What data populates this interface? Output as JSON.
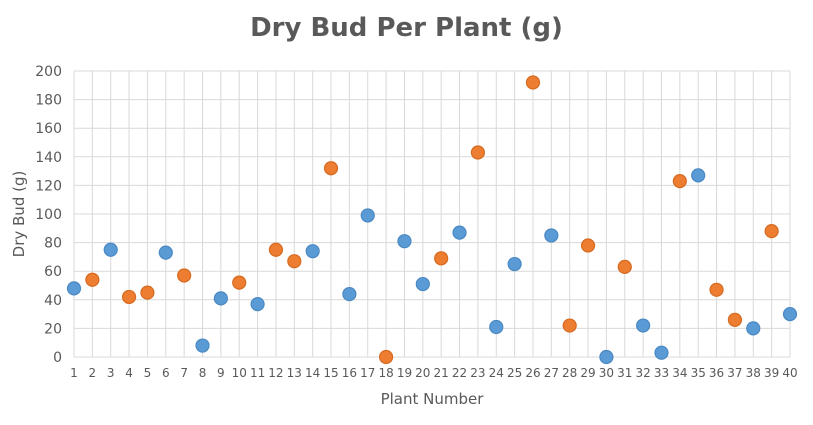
{
  "chart_data": {
    "type": "scatter",
    "title": "Dry Bud Per Plant (g)",
    "xlabel": "Plant Number",
    "ylabel": "Dry Bud (g)",
    "xlim": [
      1,
      40
    ],
    "ylim": [
      0,
      200
    ],
    "y_ticks": [
      0,
      20,
      40,
      60,
      80,
      100,
      120,
      140,
      160,
      180,
      200
    ],
    "x_ticks": [
      1,
      2,
      3,
      4,
      5,
      6,
      7,
      8,
      9,
      10,
      11,
      12,
      13,
      14,
      15,
      16,
      17,
      18,
      19,
      20,
      21,
      22,
      23,
      24,
      25,
      26,
      27,
      28,
      29,
      30,
      31,
      32,
      33,
      34,
      35,
      36,
      37,
      38,
      39,
      40
    ],
    "grid": true,
    "legend": "none",
    "colors": {
      "blue": "#5b9bd5",
      "orange": "#ed7d31",
      "blue_outline": "#4a88c2",
      "orange_outline": "#d66a1f",
      "grid": "#d9d9d9",
      "text": "#595959"
    },
    "points": [
      {
        "x": 1,
        "y": 48,
        "color": "blue"
      },
      {
        "x": 2,
        "y": 54,
        "color": "orange"
      },
      {
        "x": 3,
        "y": 75,
        "color": "blue"
      },
      {
        "x": 4,
        "y": 42,
        "color": "orange"
      },
      {
        "x": 5,
        "y": 45,
        "color": "orange"
      },
      {
        "x": 6,
        "y": 73,
        "color": "blue"
      },
      {
        "x": 7,
        "y": 57,
        "color": "orange"
      },
      {
        "x": 8,
        "y": 8,
        "color": "blue"
      },
      {
        "x": 9,
        "y": 41,
        "color": "blue"
      },
      {
        "x": 10,
        "y": 52,
        "color": "orange"
      },
      {
        "x": 11,
        "y": 37,
        "color": "blue"
      },
      {
        "x": 12,
        "y": 75,
        "color": "orange"
      },
      {
        "x": 13,
        "y": 67,
        "color": "orange"
      },
      {
        "x": 14,
        "y": 74,
        "color": "blue"
      },
      {
        "x": 15,
        "y": 132,
        "color": "orange"
      },
      {
        "x": 16,
        "y": 44,
        "color": "blue"
      },
      {
        "x": 17,
        "y": 99,
        "color": "blue"
      },
      {
        "x": 18,
        "y": 0,
        "color": "orange"
      },
      {
        "x": 19,
        "y": 81,
        "color": "blue"
      },
      {
        "x": 20,
        "y": 51,
        "color": "blue"
      },
      {
        "x": 21,
        "y": 69,
        "color": "orange"
      },
      {
        "x": 22,
        "y": 87,
        "color": "blue"
      },
      {
        "x": 23,
        "y": 143,
        "color": "orange"
      },
      {
        "x": 24,
        "y": 21,
        "color": "blue"
      },
      {
        "x": 25,
        "y": 65,
        "color": "blue"
      },
      {
        "x": 26,
        "y": 192,
        "color": "orange"
      },
      {
        "x": 27,
        "y": 85,
        "color": "blue"
      },
      {
        "x": 28,
        "y": 22,
        "color": "orange"
      },
      {
        "x": 29,
        "y": 78,
        "color": "orange"
      },
      {
        "x": 30,
        "y": 0,
        "color": "blue"
      },
      {
        "x": 31,
        "y": 63,
        "color": "orange"
      },
      {
        "x": 32,
        "y": 22,
        "color": "blue"
      },
      {
        "x": 33,
        "y": 3,
        "color": "blue"
      },
      {
        "x": 34,
        "y": 123,
        "color": "orange"
      },
      {
        "x": 35,
        "y": 127,
        "color": "blue"
      },
      {
        "x": 36,
        "y": 47,
        "color": "orange"
      },
      {
        "x": 37,
        "y": 26,
        "color": "orange"
      },
      {
        "x": 38,
        "y": 20,
        "color": "blue"
      },
      {
        "x": 39,
        "y": 88,
        "color": "orange"
      },
      {
        "x": 40,
        "y": 30,
        "color": "blue"
      }
    ]
  }
}
